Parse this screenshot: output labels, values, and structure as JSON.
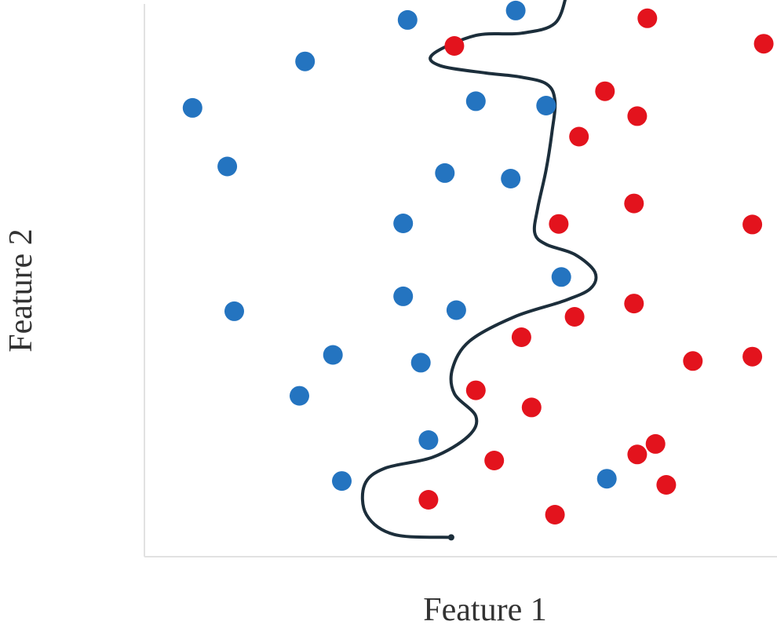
{
  "chart_data": {
    "type": "scatter",
    "title": "",
    "xlabel": "Feature 1",
    "ylabel": "Feature 2",
    "xlim": [
      0,
      100
    ],
    "ylim": [
      0,
      100
    ],
    "grid": false,
    "legend": "none",
    "series": [
      {
        "color": "#2474c0",
        "points": [
          [
            41.6,
            97.1
          ],
          [
            58.7,
            98.8
          ],
          [
            25.4,
            89.6
          ],
          [
            7.6,
            81.2
          ],
          [
            52.4,
            82.4
          ],
          [
            63.5,
            81.6
          ],
          [
            13.1,
            70.6
          ],
          [
            47.5,
            69.4
          ],
          [
            57.9,
            68.4
          ],
          [
            40.9,
            60.3
          ],
          [
            65.9,
            50.6
          ],
          [
            40.9,
            47.1
          ],
          [
            14.2,
            44.4
          ],
          [
            49.3,
            44.6
          ],
          [
            29.8,
            36.5
          ],
          [
            43.7,
            35.1
          ],
          [
            24.5,
            29.1
          ],
          [
            44.9,
            21.1
          ],
          [
            31.2,
            13.7
          ],
          [
            73.1,
            14.1
          ]
        ]
      },
      {
        "color": "#e3131d",
        "points": [
          [
            79.5,
            97.4
          ],
          [
            97.9,
            92.8
          ],
          [
            49.0,
            92.4
          ],
          [
            72.8,
            84.2
          ],
          [
            77.9,
            79.7
          ],
          [
            68.7,
            76.0
          ],
          [
            77.4,
            63.9
          ],
          [
            65.5,
            60.2
          ],
          [
            96.1,
            60.1
          ],
          [
            77.4,
            45.8
          ],
          [
            68.0,
            43.4
          ],
          [
            59.6,
            39.7
          ],
          [
            86.7,
            35.4
          ],
          [
            96.1,
            36.2
          ],
          [
            52.4,
            30.1
          ],
          [
            61.2,
            27.0
          ],
          [
            80.8,
            20.4
          ],
          [
            77.9,
            18.5
          ],
          [
            55.3,
            17.4
          ],
          [
            82.5,
            13.0
          ],
          [
            44.9,
            10.3
          ],
          [
            64.9,
            7.6
          ]
        ]
      }
    ],
    "boundary": [
      [
        66.8,
        102
      ],
      [
        64.9,
        96.5
      ],
      [
        59.6,
        94.7
      ],
      [
        52.4,
        94.3
      ],
      [
        45.6,
        90.9
      ],
      [
        46.8,
        88.8
      ],
      [
        54.0,
        87.5
      ],
      [
        59.3,
        86.8
      ],
      [
        63.6,
        85.5
      ],
      [
        64.9,
        82.4
      ],
      [
        64.4,
        76.6
      ],
      [
        63.5,
        70.0
      ],
      [
        62.2,
        63.2
      ],
      [
        61.7,
        58.6
      ],
      [
        63.5,
        56.5
      ],
      [
        68.0,
        54.7
      ],
      [
        71.2,
        51.5
      ],
      [
        70.5,
        48.5
      ],
      [
        66.1,
        46.2
      ],
      [
        58.5,
        43.4
      ],
      [
        51.4,
        39.0
      ],
      [
        48.7,
        34.0
      ],
      [
        49.0,
        29.5
      ],
      [
        52.4,
        25.4
      ],
      [
        51.2,
        21.8
      ],
      [
        45.6,
        18.0
      ],
      [
        38.0,
        16.0
      ],
      [
        34.8,
        13.0
      ],
      [
        35.1,
        7.6
      ],
      [
        39.5,
        4.0
      ],
      [
        48.5,
        3.5
      ]
    ]
  }
}
